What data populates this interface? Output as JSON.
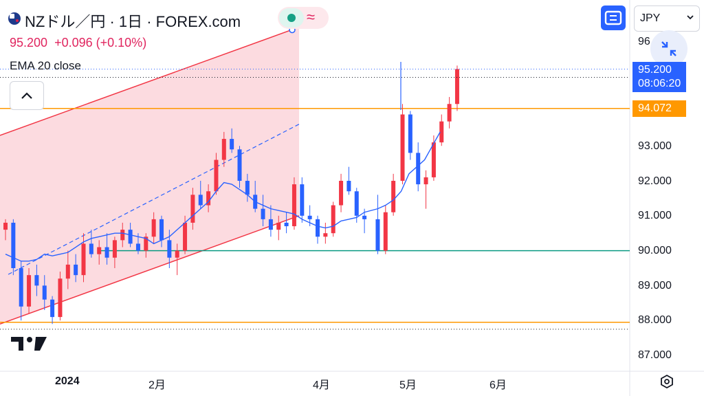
{
  "header": {
    "symbol_title": "NZドル／円 · 1日 · FOREX.com",
    "flag_icon": "nz-flag-icon",
    "status_icon": "market-open-dot-icon",
    "indicator_icon": "approx-wave-icon"
  },
  "quote": {
    "price": "95.200",
    "change": "+0.096",
    "change_pct": "(+0.10%)"
  },
  "indicator": {
    "name": "EMA",
    "params": "20 close"
  },
  "controls": {
    "currency": "JPY",
    "fullscreen_icon": "fullscreen-icon",
    "shrink_icon": "shrink-arrows-icon",
    "collapse_icon": "chevron-up-icon",
    "settings_icon": "gear-icon"
  },
  "price_axis": {
    "tick_labels": [
      "96.000",
      "93.000",
      "92.000",
      "91.000",
      "90.000",
      "89.000",
      "88.000",
      "87.000"
    ],
    "top_partial_label": "96",
    "last_price_tag": {
      "price": "95.200",
      "countdown": "08:06:20"
    },
    "line_tag": "94.072"
  },
  "time_axis": {
    "labels": [
      "2024",
      "2月",
      "4月",
      "5月",
      "6月"
    ]
  },
  "colors": {
    "up": "#f23645",
    "down": "#2962ff",
    "ema": "#2962ff",
    "channel_fill": "#fbd5da",
    "channel_line": "#f23645",
    "orange_line": "#ff9800",
    "green_line": "#089981",
    "price_tag_bg": "#2962ff",
    "line_tag_bg": "#ff9800"
  },
  "chart_data": {
    "type": "candlestick",
    "title": "NZドル／円 · 1日 · FOREX.com",
    "ylim": [
      86.7,
      96.5
    ],
    "horizontal_lines": [
      {
        "price": 94.072,
        "color": "orange"
      },
      {
        "price": 90.0,
        "color": "green"
      },
      {
        "price": 87.95,
        "color": "orange"
      }
    ],
    "channel": {
      "lower_start": 87.9,
      "lower_end": 91.0,
      "upper_start": 93.3,
      "upper_end": 96.4,
      "mid_dashed": true
    },
    "ema": [
      89.9,
      89.8,
      89.7,
      89.7,
      89.75,
      89.9,
      89.85,
      89.9,
      89.95,
      90.1,
      90.25,
      90.35,
      90.4,
      90.45,
      90.5,
      90.5,
      90.45,
      90.4,
      90.35,
      90.2,
      90.3,
      90.4,
      90.6,
      90.8,
      91.0,
      91.2,
      91.4,
      91.7,
      91.95,
      91.9,
      91.75,
      91.6,
      91.4,
      91.3,
      91.2,
      91.15,
      91.1,
      91.05,
      90.9,
      90.8,
      90.7,
      90.65,
      90.7,
      90.85,
      90.9,
      90.95,
      91.1,
      91.2,
      91.3,
      91.45,
      91.7,
      92.2,
      92.4,
      92.6,
      93.0,
      93.4
    ],
    "candles": [
      [
        90.6,
        90.9,
        90.3,
        90.8
      ],
      [
        90.8,
        90.9,
        89.3,
        89.5
      ],
      [
        89.5,
        89.7,
        88.0,
        88.4
      ],
      [
        88.4,
        89.5,
        88.2,
        89.3
      ],
      [
        89.3,
        89.6,
        88.7,
        89.0
      ],
      [
        89.0,
        89.3,
        88.3,
        88.6
      ],
      [
        88.6,
        88.7,
        87.9,
        88.1
      ],
      [
        88.1,
        89.4,
        88.0,
        89.2
      ],
      [
        89.2,
        90.0,
        88.9,
        89.6
      ],
      [
        89.6,
        89.9,
        89.1,
        89.3
      ],
      [
        89.3,
        90.5,
        89.1,
        90.2
      ],
      [
        90.2,
        90.6,
        89.8,
        89.9
      ],
      [
        89.9,
        90.3,
        89.6,
        90.1
      ],
      [
        90.1,
        90.5,
        89.6,
        89.8
      ],
      [
        89.8,
        90.4,
        89.5,
        90.3
      ],
      [
        90.3,
        90.8,
        90.1,
        90.6
      ],
      [
        90.6,
        90.8,
        90.1,
        90.2
      ],
      [
        90.2,
        90.5,
        89.9,
        90.0
      ],
      [
        90.0,
        90.5,
        89.8,
        90.4
      ],
      [
        90.4,
        91.1,
        90.2,
        90.9
      ],
      [
        90.9,
        91.0,
        90.1,
        90.3
      ],
      [
        90.3,
        90.6,
        89.5,
        89.8
      ],
      [
        89.8,
        90.2,
        89.3,
        90.0
      ],
      [
        90.0,
        91.0,
        89.9,
        90.8
      ],
      [
        90.8,
        91.8,
        90.6,
        91.6
      ],
      [
        91.6,
        92.0,
        91.2,
        91.3
      ],
      [
        91.3,
        91.9,
        91.1,
        91.7
      ],
      [
        91.7,
        92.8,
        91.6,
        92.6
      ],
      [
        92.6,
        93.4,
        92.4,
        93.2
      ],
      [
        93.2,
        93.5,
        92.8,
        92.9
      ],
      [
        92.9,
        93.0,
        91.8,
        92.0
      ],
      [
        92.0,
        92.2,
        91.4,
        91.6
      ],
      [
        91.6,
        92.0,
        91.1,
        91.2
      ],
      [
        91.2,
        91.6,
        90.7,
        90.9
      ],
      [
        90.9,
        91.3,
        90.4,
        90.6
      ],
      [
        90.6,
        91.0,
        90.3,
        90.8
      ],
      [
        90.8,
        91.1,
        90.5,
        90.7
      ],
      [
        90.7,
        92.1,
        90.6,
        91.9
      ],
      [
        91.9,
        92.1,
        90.8,
        91.0
      ],
      [
        91.0,
        91.3,
        90.7,
        90.9
      ],
      [
        90.9,
        91.0,
        90.2,
        90.4
      ],
      [
        90.4,
        90.8,
        90.2,
        90.5
      ],
      [
        90.5,
        91.4,
        90.4,
        91.3
      ],
      [
        91.3,
        92.2,
        91.1,
        92.0
      ],
      [
        92.0,
        92.4,
        91.6,
        91.7
      ],
      [
        91.7,
        91.8,
        90.8,
        91.0
      ],
      [
        91.0,
        91.2,
        90.5,
        90.9
      ],
      [
        90.9,
        91.6,
        89.9,
        90.0
      ],
      [
        90.0,
        91.3,
        89.9,
        91.1
      ],
      [
        91.1,
        92.2,
        91.0,
        92.0
      ],
      [
        92.0,
        94.2,
        91.9,
        93.9
      ],
      [
        93.9,
        94.0,
        92.6,
        92.8
      ],
      [
        92.8,
        93.1,
        91.7,
        91.9
      ],
      [
        91.9,
        92.3,
        91.2,
        92.1
      ],
      [
        92.1,
        93.3,
        92.0,
        93.1
      ],
      [
        93.1,
        93.9,
        93.0,
        93.7
      ],
      [
        93.7,
        94.4,
        93.5,
        94.2
      ],
      [
        94.2,
        95.3,
        94.0,
        95.2
      ]
    ]
  }
}
